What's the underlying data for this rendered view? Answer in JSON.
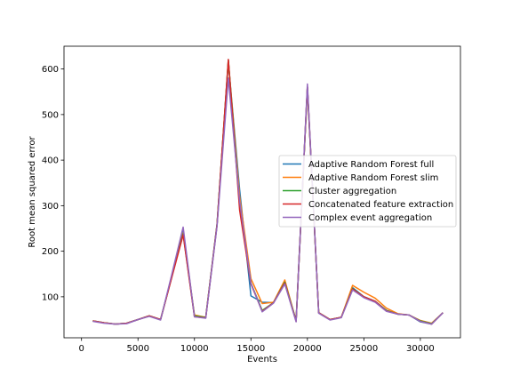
{
  "chart_data": {
    "type": "line",
    "title": "",
    "xlabel": "Events",
    "ylabel": "Root mean squared error",
    "xlim": [
      -1550,
      33550
    ],
    "ylim": [
      10,
      650
    ],
    "xticks": [
      0,
      5000,
      10000,
      15000,
      20000,
      25000,
      30000
    ],
    "xtick_labels": [
      "0",
      "5000",
      "10000",
      "15000",
      "20000",
      "25000",
      "30000"
    ],
    "yticks": [
      100,
      200,
      300,
      400,
      500,
      600
    ],
    "ytick_labels": [
      "100",
      "200",
      "300",
      "400",
      "500",
      "600"
    ],
    "grid": false,
    "legend_position": "center-right",
    "x": [
      1000,
      2000,
      3000,
      4000,
      5000,
      6000,
      7000,
      8000,
      9000,
      10000,
      11000,
      12000,
      13000,
      14000,
      15000,
      16000,
      17000,
      18000,
      19000,
      20000,
      21000,
      22000,
      23000,
      24000,
      25000,
      26000,
      27000,
      28000,
      29000,
      30000,
      31000,
      32000
    ],
    "series": [
      {
        "name": "Adaptive Random Forest full",
        "color": "#1f77b4",
        "values": [
          47,
          43,
          40,
          42,
          50,
          58,
          50,
          145,
          245,
          57,
          55,
          260,
          615,
          335,
          102,
          88,
          87,
          133,
          48,
          560,
          65,
          50,
          55,
          120,
          100,
          90,
          70,
          62,
          60,
          45,
          40,
          65
        ]
      },
      {
        "name": "Adaptive Random Forest slim",
        "color": "#ff7f0e",
        "values": [
          47,
          43,
          40,
          42,
          50,
          58,
          50,
          145,
          240,
          60,
          55,
          258,
          618,
          320,
          140,
          85,
          88,
          137,
          47,
          560,
          65,
          50,
          55,
          125,
          110,
          97,
          75,
          63,
          60,
          48,
          42,
          65
        ]
      },
      {
        "name": "Cluster aggregation",
        "color": "#2ca02c",
        "values": [
          47,
          43,
          40,
          42,
          50,
          58,
          50,
          145,
          238,
          58,
          55,
          258,
          620,
          300,
          130,
          70,
          87,
          132,
          47,
          560,
          65,
          50,
          55,
          118,
          100,
          90,
          70,
          62,
          60,
          47,
          41,
          65
        ]
      },
      {
        "name": "Concatenated feature extraction",
        "color": "#d62728",
        "values": [
          47,
          43,
          40,
          42,
          50,
          58,
          50,
          143,
          236,
          56,
          54,
          258,
          621,
          290,
          128,
          68,
          87,
          130,
          46,
          562,
          65,
          50,
          55,
          117,
          100,
          90,
          69,
          62,
          60,
          46,
          40,
          65
        ]
      },
      {
        "name": "Complex event aggregation",
        "color": "#9467bd",
        "values": [
          46,
          42,
          40,
          41,
          50,
          57,
          49,
          150,
          253,
          56,
          53,
          255,
          580,
          310,
          130,
          67,
          86,
          128,
          45,
          567,
          64,
          49,
          54,
          115,
          98,
          88,
          68,
          62,
          60,
          46,
          40,
          65
        ]
      }
    ]
  }
}
